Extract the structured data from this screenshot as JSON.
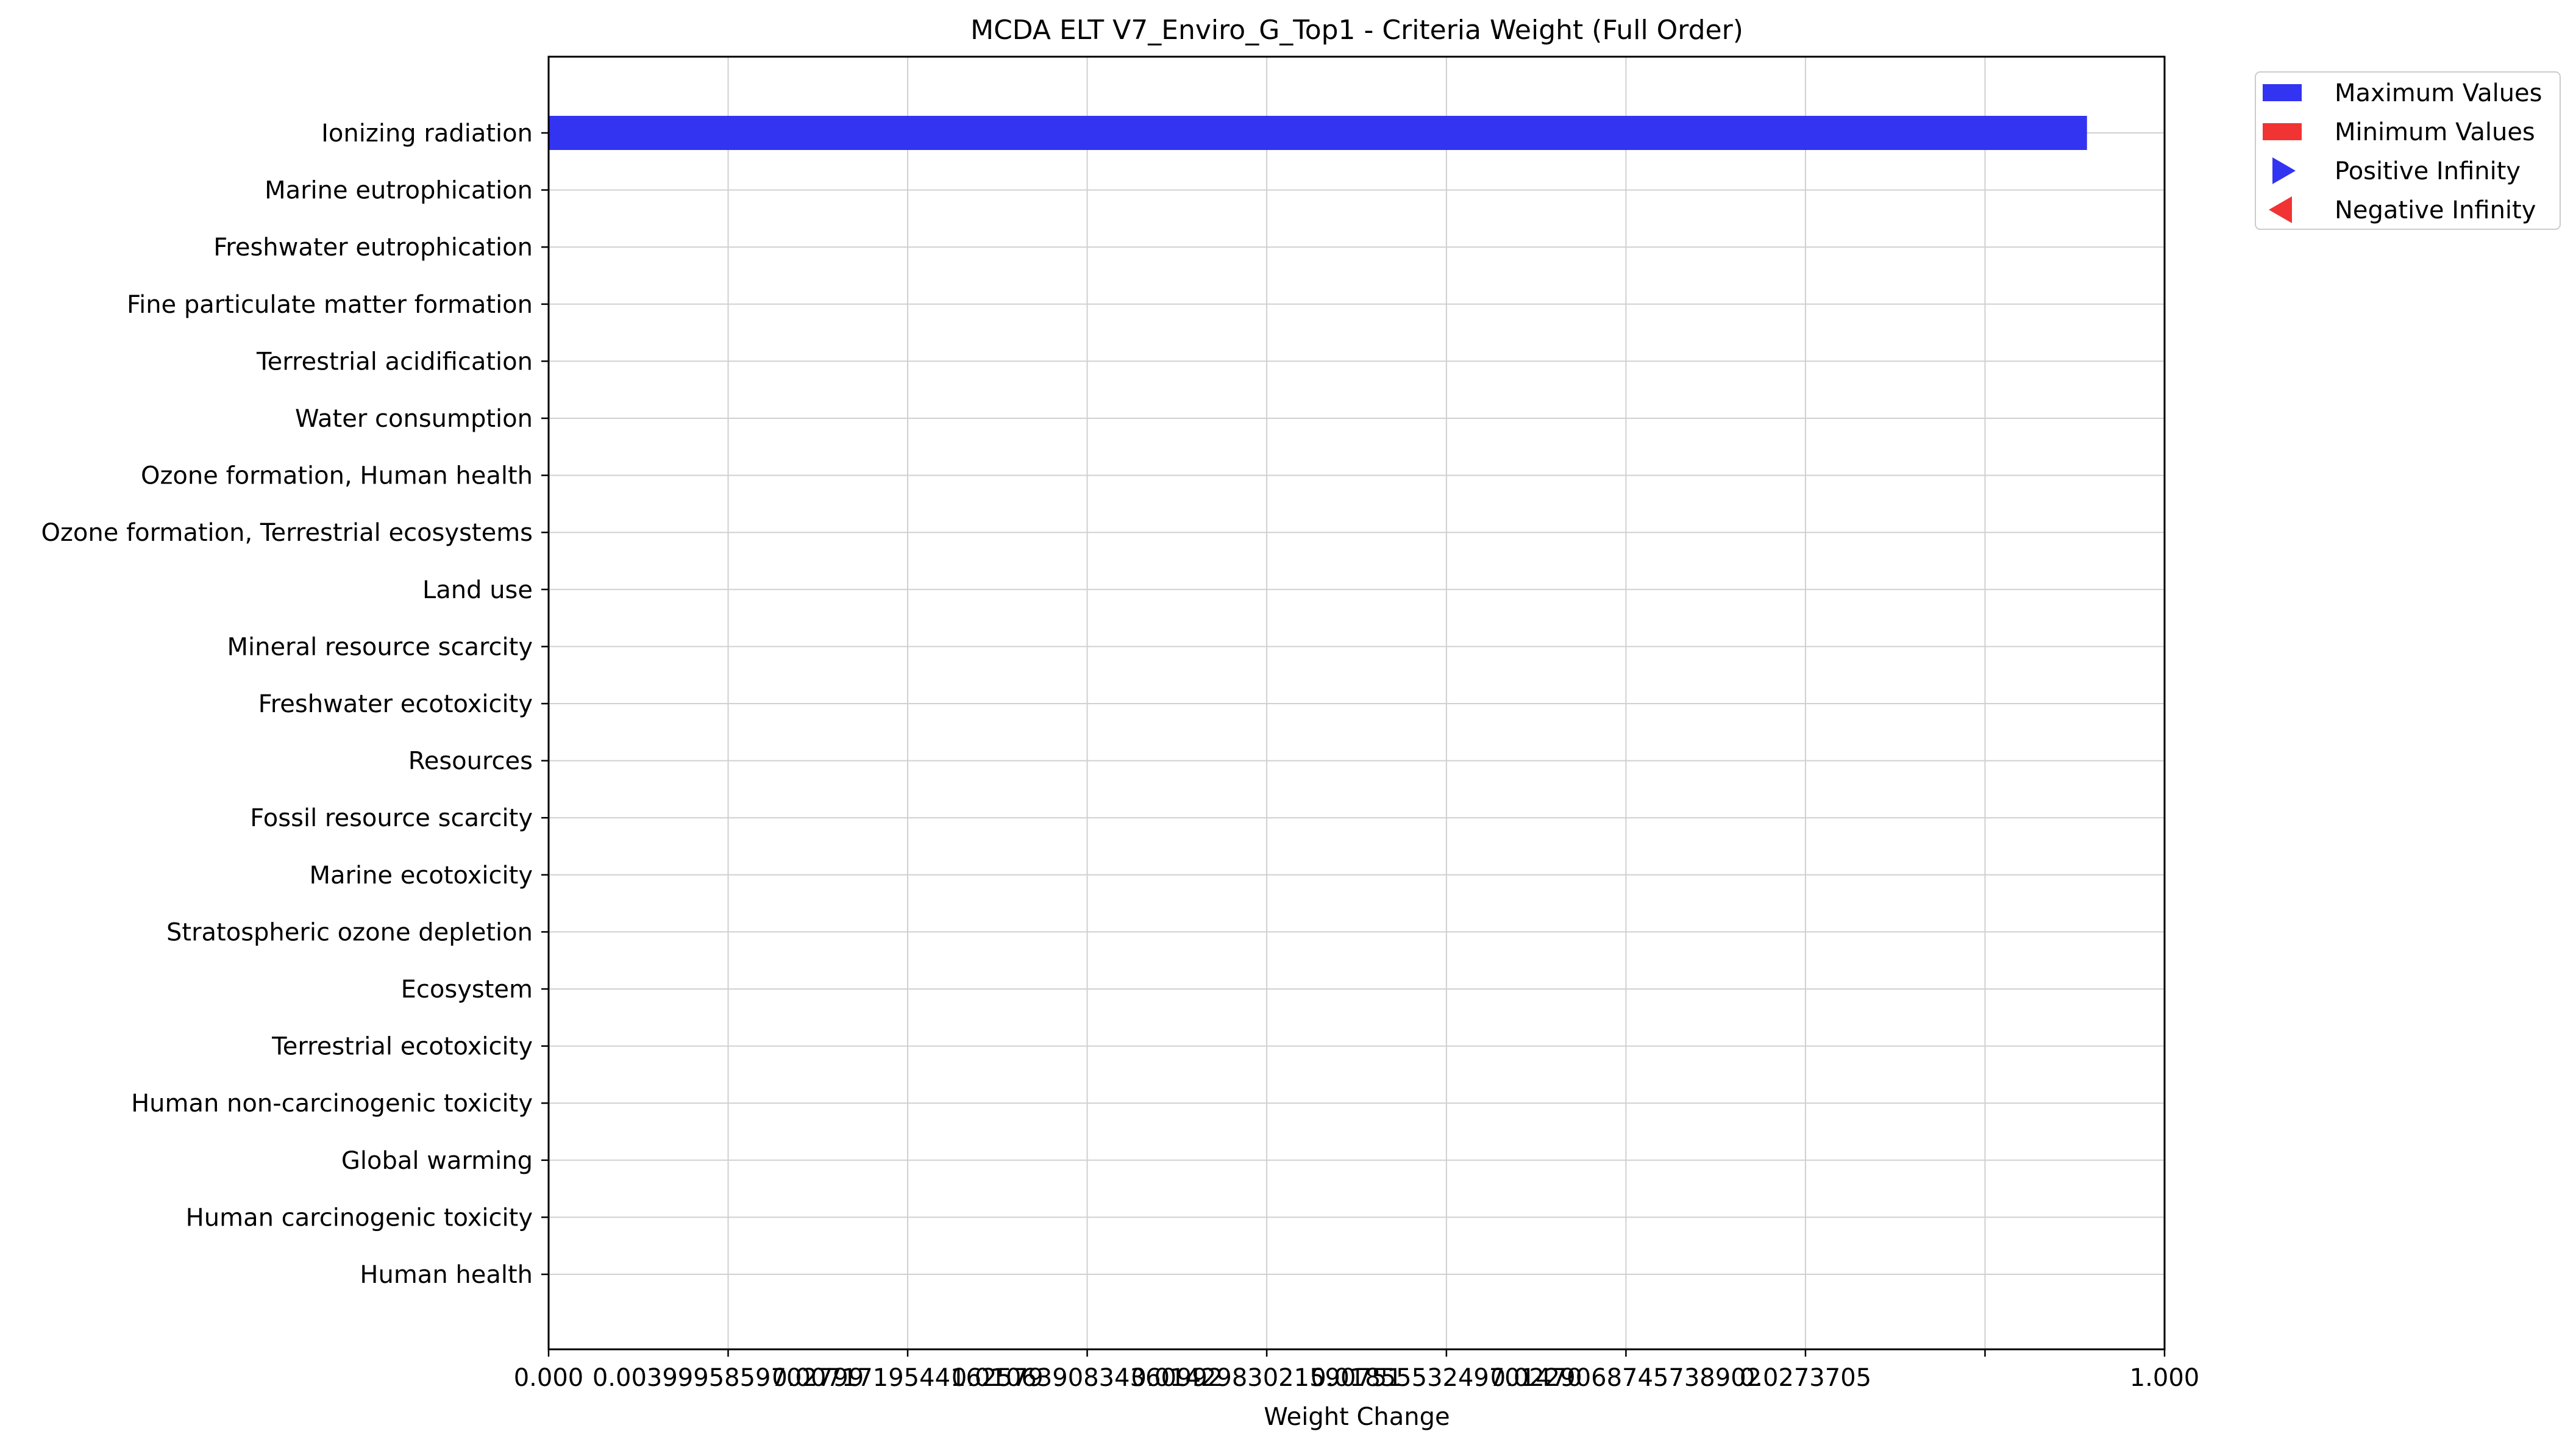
{
  "chart_data": {
    "type": "bar",
    "orientation": "horizontal",
    "title": "MCDA ELT V7_Enviro_G_Top1 - Criteria Weight (Full Order)",
    "xlabel": "Weight Change",
    "ylabel": "",
    "xlim": [
      0,
      1
    ],
    "xticks": [
      0,
      0.1111,
      0.2222,
      0.3333,
      0.4444,
      0.5556,
      0.6667,
      0.7778,
      0.8889,
      1.0
    ],
    "xtick_labels": [
      "0.000",
      "0.0039995859702799",
      "0.0071719544162579",
      "0.0106390834360992",
      "0.0142983021590751",
      "0.0185553249701470",
      "0.0229068745738902",
      "0.0273705",
      "",
      "1.000"
    ],
    "grid": true,
    "categories": [
      "Ionizing radiation",
      "Marine eutrophication",
      "Freshwater eutrophication",
      "Fine particulate matter formation",
      "Terrestrial acidification",
      "Water consumption",
      "Ozone formation, Human health",
      "Ozone formation, Terrestrial ecosystems",
      "Land use",
      "Mineral resource scarcity",
      "Freshwater ecotoxicity",
      "Resources",
      "Fossil resource scarcity",
      "Marine ecotoxicity",
      "Stratospheric ozone depletion",
      "Ecosystem",
      "Terrestrial ecotoxicity",
      "Human non-carcinogenic toxicity",
      "Global warming",
      "Human carcinogenic toxicity",
      "Human health"
    ],
    "series": [
      {
        "name": "Maximum Values",
        "color": "#3333f2",
        "values": [
          0.952,
          0,
          0,
          0,
          0,
          0,
          0,
          0,
          0,
          0,
          0,
          0,
          0,
          0,
          0,
          0,
          0,
          0,
          0,
          0,
          0
        ]
      },
      {
        "name": "Minimum Values",
        "color": "#f23333",
        "values": [
          0,
          0,
          0,
          0,
          0,
          0,
          0,
          0,
          0,
          0,
          0,
          0,
          0,
          0,
          0,
          0,
          0,
          0,
          0,
          0,
          0
        ]
      }
    ],
    "legend": {
      "placement": "outside-top-right",
      "entries": [
        {
          "label": "Maximum Values",
          "marker": "rect",
          "color": "#3333f2"
        },
        {
          "label": "Minimum Values",
          "marker": "rect",
          "color": "#f23333"
        },
        {
          "label": "Positive Infinity",
          "marker": "triangle-right",
          "color": "#3333f2"
        },
        {
          "label": "Negative Infinity",
          "marker": "triangle-left",
          "color": "#f23333"
        }
      ]
    }
  }
}
